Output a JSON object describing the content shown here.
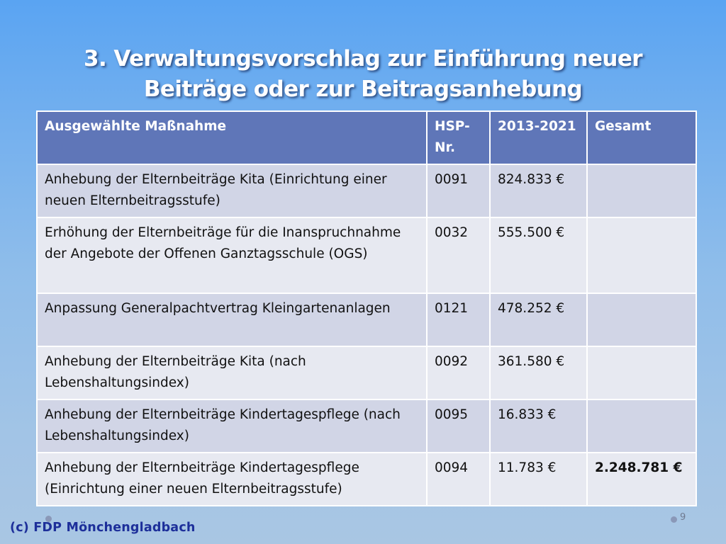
{
  "slide": {
    "title_line1": "3. Verwaltungsvorschlag zur Einführung neuer",
    "title_line2": "Beiträge oder zur Beitragsanhebung",
    "footer": "(c) FDP Mönchengladbach",
    "page_number": "9"
  },
  "table": {
    "headers": [
      "Ausgewählte Maßnahme",
      "HSP-Nr.",
      "2013-2021",
      "Gesamt"
    ],
    "rows": [
      {
        "measure": "Anhebung der Elternbeiträge Kita (Einrichtung einer neuen Elternbeitragsstufe)",
        "hsp": "0091",
        "amount": "824.833 €",
        "total": ""
      },
      {
        "measure": "Erhöhung der Elternbeiträge für die Inanspruchnahme der Angebote der Offenen Ganztagsschule (OGS)",
        "hsp": "0032",
        "amount": "555.500 €",
        "total": ""
      },
      {
        "measure": "Anpassung Generalpachtvertrag Kleingartenanlagen",
        "hsp": "0121",
        "amount": "478.252 €",
        "total": ""
      },
      {
        "measure": "Anhebung der Elternbeiträge Kita (nach Lebenshaltungsindex)",
        "hsp": "0092",
        "amount": "361.580 €",
        "total": ""
      },
      {
        "measure": "Anhebung der Elternbeiträge Kindertagespflege (nach Lebenshaltungsindex)",
        "hsp": "0095",
        "amount": "16.833 €",
        "total": ""
      },
      {
        "measure": "Anhebung der Elternbeiträge Kindertagespflege (Einrichtung einer neuen Elternbeitragsstufe)",
        "hsp": "0094",
        "amount": "11.783 €",
        "total": "2.248.781 €"
      }
    ]
  },
  "colors": {
    "header_bg": "#5f76b8",
    "row_odd_bg": "#d1d5e6",
    "row_even_bg": "#e7e9f1",
    "footer_text": "#1d2f9a"
  }
}
